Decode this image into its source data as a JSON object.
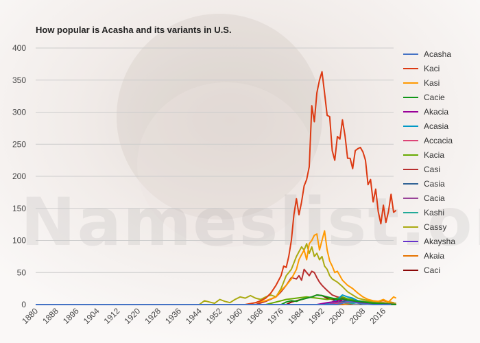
{
  "chart_data": {
    "type": "line",
    "title": "How popular is Acasha and its variants in U.S.",
    "xlabel": "",
    "ylabel": "",
    "xlim": [
      1880,
      2020
    ],
    "ylim": [
      0,
      400
    ],
    "x_ticks": [
      "1880",
      "1888",
      "1896",
      "1904",
      "1912",
      "1920",
      "1928",
      "1936",
      "1944",
      "1952",
      "1960",
      "1968",
      "1976",
      "1984",
      "1992",
      "2000",
      "2008",
      "2016"
    ],
    "y_ticks": [
      "0",
      "50",
      "100",
      "150",
      "200",
      "250",
      "300",
      "350",
      "400"
    ],
    "grid": true,
    "legend_position": "right",
    "series": [
      {
        "name": "Acasha",
        "color": "#4472c4",
        "points": [
          [
            1880,
            0
          ],
          [
            1998,
            0
          ],
          [
            2000,
            2
          ],
          [
            2002,
            5
          ],
          [
            2005,
            3
          ],
          [
            2008,
            1
          ],
          [
            2012,
            0
          ],
          [
            2019,
            0
          ]
        ]
      },
      {
        "name": "Kaci",
        "color": "#dc3912",
        "points": [
          [
            1880,
            0
          ],
          [
            1962,
            0
          ],
          [
            1966,
            3
          ],
          [
            1968,
            6
          ],
          [
            1970,
            10
          ],
          [
            1972,
            18
          ],
          [
            1974,
            30
          ],
          [
            1976,
            45
          ],
          [
            1977,
            60
          ],
          [
            1978,
            58
          ],
          [
            1979,
            75
          ],
          [
            1980,
            100
          ],
          [
            1981,
            140
          ],
          [
            1982,
            165
          ],
          [
            1983,
            140
          ],
          [
            1984,
            160
          ],
          [
            1985,
            185
          ],
          [
            1986,
            195
          ],
          [
            1987,
            215
          ],
          [
            1988,
            310
          ],
          [
            1989,
            285
          ],
          [
            1990,
            330
          ],
          [
            1991,
            350
          ],
          [
            1992,
            363
          ],
          [
            1993,
            330
          ],
          [
            1994,
            295
          ],
          [
            1995,
            293
          ],
          [
            1996,
            240
          ],
          [
            1997,
            225
          ],
          [
            1998,
            262
          ],
          [
            1999,
            258
          ],
          [
            2000,
            288
          ],
          [
            2001,
            263
          ],
          [
            2002,
            228
          ],
          [
            2003,
            228
          ],
          [
            2004,
            212
          ],
          [
            2005,
            240
          ],
          [
            2006,
            243
          ],
          [
            2007,
            245
          ],
          [
            2008,
            238
          ],
          [
            2009,
            225
          ],
          [
            2010,
            187
          ],
          [
            2011,
            195
          ],
          [
            2012,
            160
          ],
          [
            2013,
            180
          ],
          [
            2014,
            145
          ],
          [
            2015,
            126
          ],
          [
            2016,
            155
          ],
          [
            2017,
            128
          ],
          [
            2018,
            145
          ],
          [
            2019,
            172
          ],
          [
            2020,
            144
          ],
          [
            2021,
            147
          ]
        ]
      },
      {
        "name": "Kasi",
        "color": "#ff9900",
        "points": [
          [
            1880,
            0
          ],
          [
            1962,
            0
          ],
          [
            1966,
            3
          ],
          [
            1970,
            6
          ],
          [
            1974,
            12
          ],
          [
            1976,
            22
          ],
          [
            1978,
            30
          ],
          [
            1980,
            40
          ],
          [
            1982,
            55
          ],
          [
            1983,
            70
          ],
          [
            1984,
            78
          ],
          [
            1985,
            85
          ],
          [
            1986,
            70
          ],
          [
            1987,
            95
          ],
          [
            1988,
            100
          ],
          [
            1989,
            108
          ],
          [
            1990,
            110
          ],
          [
            1991,
            85
          ],
          [
            1992,
            100
          ],
          [
            1993,
            115
          ],
          [
            1994,
            85
          ],
          [
            1995,
            68
          ],
          [
            1996,
            60
          ],
          [
            1997,
            50
          ],
          [
            1998,
            52
          ],
          [
            1999,
            45
          ],
          [
            2000,
            38
          ],
          [
            2002,
            30
          ],
          [
            2004,
            25
          ],
          [
            2006,
            18
          ],
          [
            2008,
            12
          ],
          [
            2010,
            8
          ],
          [
            2012,
            6
          ],
          [
            2014,
            5
          ],
          [
            2016,
            8
          ],
          [
            2018,
            4
          ],
          [
            2020,
            12
          ],
          [
            2021,
            10
          ]
        ]
      },
      {
        "name": "Cacie",
        "color": "#109618",
        "points": [
          [
            1880,
            0
          ],
          [
            1976,
            0
          ],
          [
            1978,
            4
          ],
          [
            1980,
            6
          ],
          [
            1982,
            5
          ],
          [
            1984,
            8
          ],
          [
            1986,
            10
          ],
          [
            1988,
            12
          ],
          [
            1990,
            15
          ],
          [
            1992,
            14
          ],
          [
            1994,
            12
          ],
          [
            1996,
            10
          ],
          [
            1998,
            8
          ],
          [
            2000,
            9
          ],
          [
            2002,
            7
          ],
          [
            2004,
            6
          ],
          [
            2006,
            5
          ],
          [
            2008,
            4
          ],
          [
            2012,
            2
          ],
          [
            2016,
            1
          ],
          [
            2021,
            0
          ]
        ]
      },
      {
        "name": "Akacia",
        "color": "#990099",
        "points": [
          [
            1880,
            0
          ],
          [
            1990,
            0
          ],
          [
            1994,
            3
          ],
          [
            1998,
            5
          ],
          [
            2000,
            8
          ],
          [
            2002,
            6
          ],
          [
            2004,
            5
          ],
          [
            2008,
            3
          ],
          [
            2012,
            2
          ],
          [
            2021,
            0
          ]
        ]
      },
      {
        "name": "Acasia",
        "color": "#0099c6",
        "points": [
          [
            1880,
            0
          ],
          [
            1992,
            0
          ],
          [
            1996,
            4
          ],
          [
            1998,
            8
          ],
          [
            2000,
            15
          ],
          [
            2002,
            12
          ],
          [
            2004,
            10
          ],
          [
            2006,
            6
          ],
          [
            2008,
            4
          ],
          [
            2012,
            2
          ],
          [
            2021,
            0
          ]
        ]
      },
      {
        "name": "Accacia",
        "color": "#dd4477",
        "points": [
          [
            1880,
            0
          ],
          [
            1996,
            0
          ],
          [
            2000,
            3
          ],
          [
            2004,
            4
          ],
          [
            2008,
            2
          ],
          [
            2021,
            0
          ]
        ]
      },
      {
        "name": "Kacia",
        "color": "#66aa00",
        "points": [
          [
            1880,
            0
          ],
          [
            1970,
            0
          ],
          [
            1974,
            4
          ],
          [
            1978,
            8
          ],
          [
            1982,
            10
          ],
          [
            1986,
            12
          ],
          [
            1990,
            10
          ],
          [
            1994,
            8
          ],
          [
            1998,
            10
          ],
          [
            2000,
            12
          ],
          [
            2002,
            9
          ],
          [
            2004,
            8
          ],
          [
            2006,
            6
          ],
          [
            2008,
            5
          ],
          [
            2012,
            3
          ],
          [
            2016,
            2
          ],
          [
            2021,
            0
          ]
        ]
      },
      {
        "name": "Casi",
        "color": "#b82e2e",
        "points": [
          [
            1880,
            0
          ],
          [
            1966,
            0
          ],
          [
            1970,
            5
          ],
          [
            1974,
            12
          ],
          [
            1976,
            20
          ],
          [
            1978,
            30
          ],
          [
            1980,
            42
          ],
          [
            1982,
            40
          ],
          [
            1983,
            45
          ],
          [
            1984,
            38
          ],
          [
            1985,
            55
          ],
          [
            1986,
            50
          ],
          [
            1987,
            45
          ],
          [
            1988,
            52
          ],
          [
            1989,
            50
          ],
          [
            1990,
            42
          ],
          [
            1991,
            35
          ],
          [
            1992,
            30
          ],
          [
            1993,
            26
          ],
          [
            1994,
            22
          ],
          [
            1996,
            15
          ],
          [
            1998,
            12
          ],
          [
            2000,
            10
          ],
          [
            2004,
            6
          ],
          [
            2008,
            4
          ],
          [
            2012,
            3
          ],
          [
            2016,
            2
          ],
          [
            2021,
            0
          ]
        ]
      },
      {
        "name": "Casia",
        "color": "#316395",
        "points": [
          [
            1880,
            0
          ],
          [
            1996,
            0
          ],
          [
            2000,
            4
          ],
          [
            2002,
            8
          ],
          [
            2004,
            5
          ],
          [
            2008,
            3
          ],
          [
            2012,
            2
          ],
          [
            2021,
            0
          ]
        ]
      },
      {
        "name": "Cacia",
        "color": "#994499",
        "points": [
          [
            1880,
            0
          ],
          [
            1994,
            0
          ],
          [
            1998,
            3
          ],
          [
            2002,
            5
          ],
          [
            2006,
            3
          ],
          [
            2010,
            2
          ],
          [
            2021,
            0
          ]
        ]
      },
      {
        "name": "Kashi",
        "color": "#22aa99",
        "points": [
          [
            1880,
            0
          ],
          [
            1996,
            0
          ],
          [
            2000,
            3
          ],
          [
            2004,
            2
          ],
          [
            2008,
            4
          ],
          [
            2012,
            2
          ],
          [
            2021,
            0
          ]
        ]
      },
      {
        "name": "Cassy",
        "color": "#aaaa11",
        "points": [
          [
            1880,
            0
          ],
          [
            1944,
            0
          ],
          [
            1946,
            6
          ],
          [
            1948,
            4
          ],
          [
            1950,
            2
          ],
          [
            1952,
            8
          ],
          [
            1954,
            5
          ],
          [
            1956,
            3
          ],
          [
            1958,
            8
          ],
          [
            1960,
            12
          ],
          [
            1962,
            10
          ],
          [
            1964,
            14
          ],
          [
            1966,
            10
          ],
          [
            1968,
            8
          ],
          [
            1970,
            12
          ],
          [
            1972,
            15
          ],
          [
            1974,
            12
          ],
          [
            1976,
            25
          ],
          [
            1978,
            45
          ],
          [
            1980,
            55
          ],
          [
            1982,
            75
          ],
          [
            1984,
            90
          ],
          [
            1985,
            85
          ],
          [
            1986,
            95
          ],
          [
            1987,
            80
          ],
          [
            1988,
            90
          ],
          [
            1989,
            75
          ],
          [
            1990,
            80
          ],
          [
            1991,
            70
          ],
          [
            1992,
            75
          ],
          [
            1993,
            60
          ],
          [
            1994,
            55
          ],
          [
            1995,
            45
          ],
          [
            1996,
            40
          ],
          [
            1998,
            35
          ],
          [
            2000,
            28
          ],
          [
            2002,
            20
          ],
          [
            2004,
            15
          ],
          [
            2006,
            10
          ],
          [
            2008,
            8
          ],
          [
            2012,
            5
          ],
          [
            2016,
            3
          ],
          [
            2021,
            2
          ]
        ]
      },
      {
        "name": "Akaysha",
        "color": "#6633cc",
        "points": [
          [
            1880,
            0
          ],
          [
            1994,
            0
          ],
          [
            1998,
            3
          ],
          [
            2002,
            6
          ],
          [
            2006,
            4
          ],
          [
            2010,
            3
          ],
          [
            2014,
            2
          ],
          [
            2021,
            0
          ]
        ]
      },
      {
        "name": "Akaia",
        "color": "#e67300",
        "points": [
          [
            1880,
            0
          ],
          [
            2000,
            0
          ],
          [
            2004,
            2
          ],
          [
            2008,
            5
          ],
          [
            2012,
            4
          ],
          [
            2016,
            6
          ],
          [
            2020,
            3
          ],
          [
            2021,
            0
          ]
        ]
      },
      {
        "name": "Caci",
        "color": "#8b0707",
        "points": [
          [
            1880,
            0
          ],
          [
            1978,
            0
          ],
          [
            1980,
            4
          ],
          [
            1984,
            8
          ],
          [
            1988,
            12
          ],
          [
            1990,
            15
          ],
          [
            1992,
            14
          ],
          [
            1994,
            10
          ],
          [
            1996,
            8
          ],
          [
            1998,
            6
          ],
          [
            2000,
            5
          ],
          [
            2004,
            4
          ],
          [
            2008,
            3
          ],
          [
            2012,
            2
          ],
          [
            2016,
            3
          ],
          [
            2018,
            2
          ],
          [
            2021,
            0
          ]
        ]
      }
    ]
  }
}
